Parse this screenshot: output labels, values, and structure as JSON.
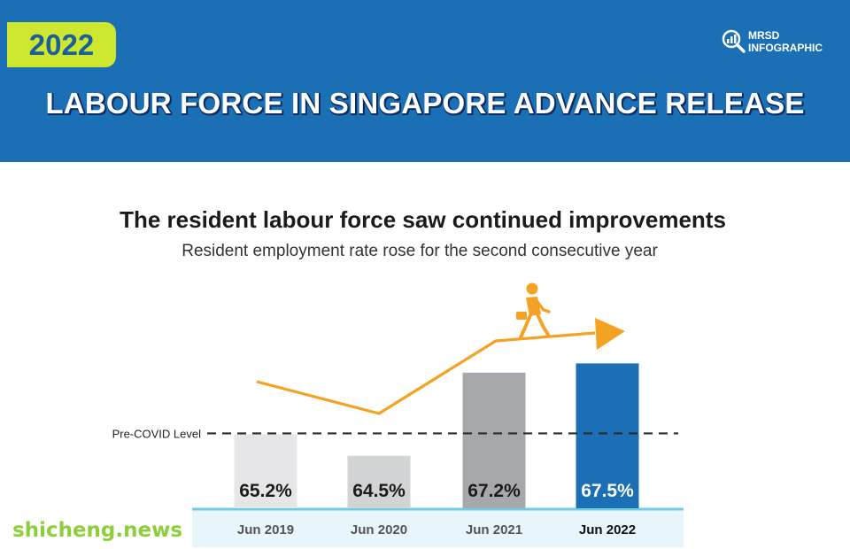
{
  "header": {
    "year": "2022",
    "logo_line1": "MRSD",
    "logo_line2": "INFOGRAPHIC",
    "title": "LABOUR FORCE IN SINGAPORE ADVANCE RELEASE"
  },
  "headline": "The resident labour force saw continued improvements",
  "subheadline": "Resident employment rate rose for the second consecutive year",
  "colors": {
    "header_blue": "#1a6fb5",
    "badge_green": "#cde62e",
    "arrow_orange": "#f4a223",
    "bar_highlight": "#1a6fb5"
  },
  "chart_data": {
    "type": "bar",
    "title": "",
    "xlabel": "",
    "ylabel": "",
    "categories": [
      "Jun 2019",
      "Jun 2020",
      "Jun 2021",
      "Jun 2022"
    ],
    "values": [
      65.2,
      64.5,
      67.2,
      67.5
    ],
    "value_labels": [
      "65.2%",
      "64.5%",
      "67.2%",
      "67.5%"
    ],
    "bar_colors": [
      "#e6e6e8",
      "#d2d3d5",
      "#a6a8ab",
      "#1a6fb5"
    ],
    "ylim": [
      62.8,
      68.0
    ],
    "reference_line": {
      "label": "Pre-COVID Level",
      "value": 65.2
    },
    "highlight_category": "Jun 2022",
    "trend_arrow": "orange arrow rising to the right with a walking person icon"
  },
  "watermark": "shicheng.news"
}
